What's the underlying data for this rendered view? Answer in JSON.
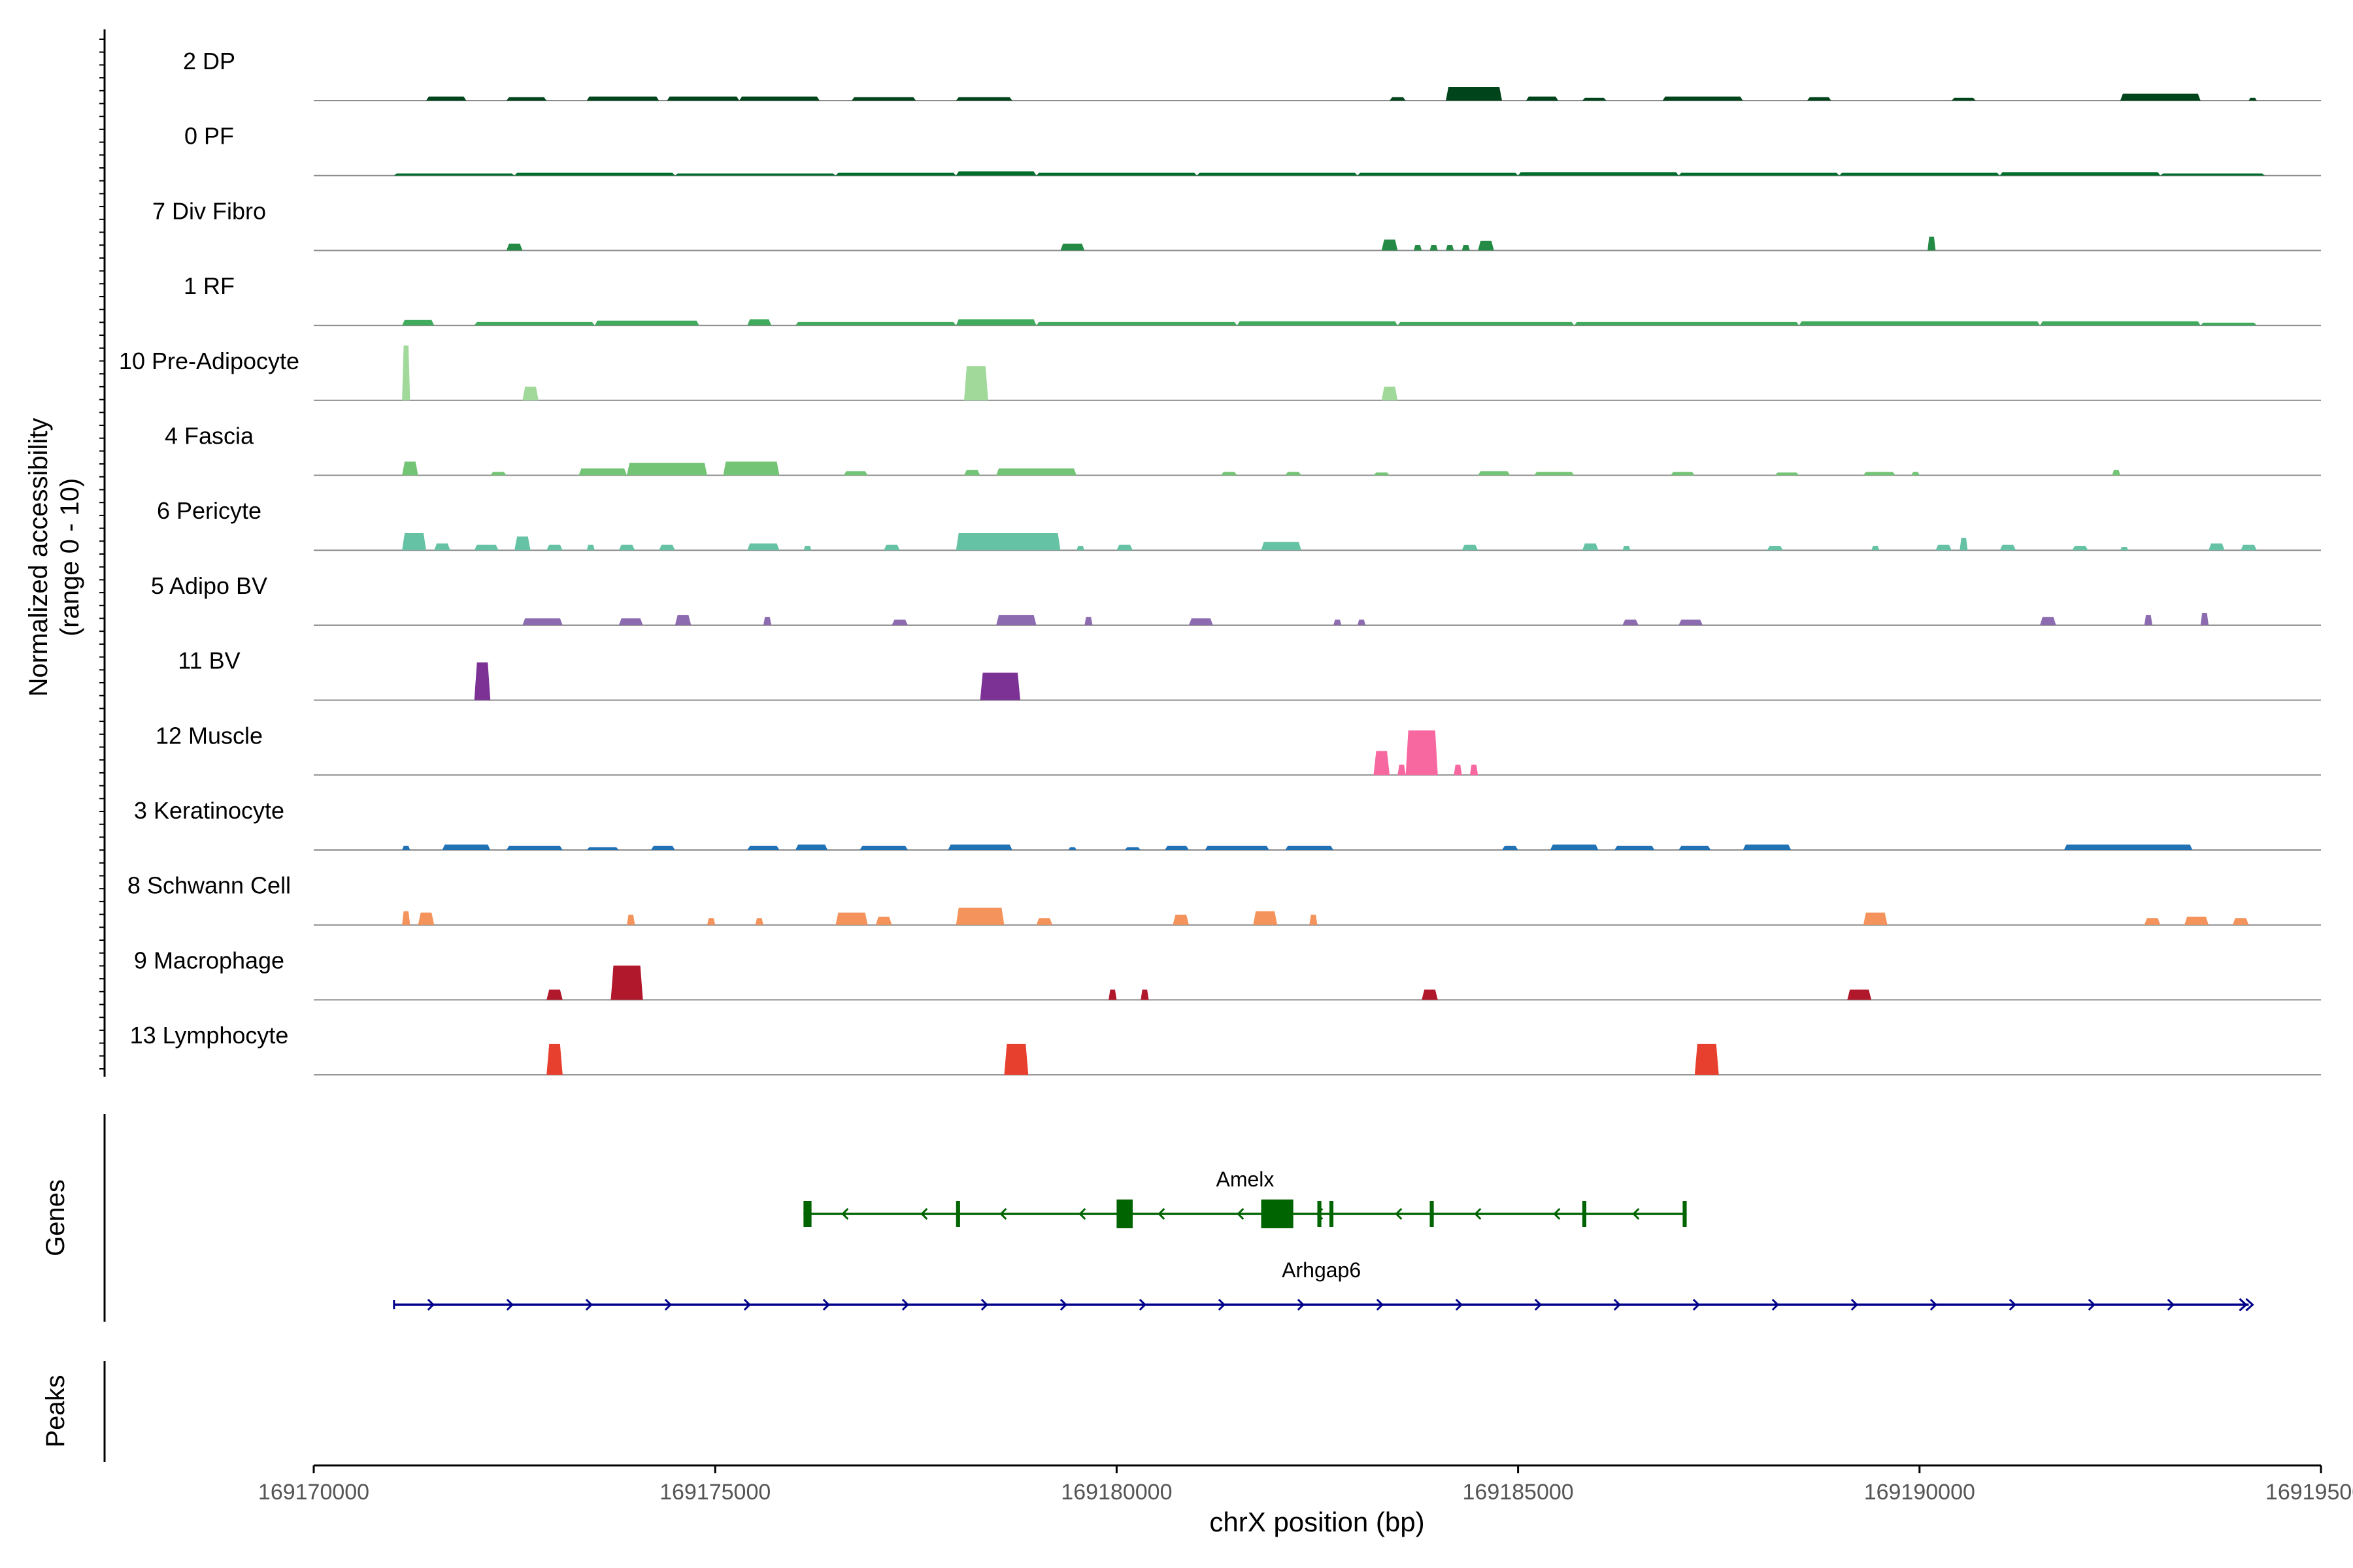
{
  "chart_data": {
    "type": "coverage",
    "chromosome": "chrX",
    "xlabel": "chrX position (bp)",
    "xlim": [
      169170000,
      169195000
    ],
    "xticks": [
      169170000,
      169175000,
      169180000,
      169185000,
      169190000,
      169195000
    ],
    "ylabel_line1": "Normalized accessibility",
    "ylabel_line2": "(range 0 - 10)",
    "ylim": [
      0,
      10
    ],
    "tracks": [
      {
        "name": "2 DP",
        "color": "#00441b",
        "peaks": [
          [
            169171400,
            169171900,
            0.6
          ],
          [
            169172400,
            169172900,
            0.5
          ],
          [
            169173400,
            169174300,
            0.6
          ],
          [
            169174400,
            169175300,
            0.6
          ],
          [
            169175300,
            169176300,
            0.6
          ],
          [
            169176700,
            169177500,
            0.5
          ],
          [
            169178000,
            169178700,
            0.5
          ],
          [
            169183400,
            169183600,
            0.5
          ],
          [
            169184100,
            169184800,
            2.0
          ],
          [
            169185100,
            169185500,
            0.6
          ],
          [
            169185800,
            169186100,
            0.4
          ],
          [
            169186800,
            169187800,
            0.6
          ],
          [
            169188600,
            169188900,
            0.5
          ],
          [
            169190400,
            169190700,
            0.4
          ],
          [
            169192500,
            169193500,
            1.0
          ],
          [
            169194100,
            169194200,
            0.4
          ]
        ]
      },
      {
        "name": "0 PF",
        "color": "#006d2c",
        "peaks": [
          [
            169171000,
            169172500,
            0.3
          ],
          [
            169172500,
            169174500,
            0.4
          ],
          [
            169174500,
            169176500,
            0.3
          ],
          [
            169176500,
            169178000,
            0.4
          ],
          [
            169178000,
            169179000,
            0.6
          ],
          [
            169179000,
            169181000,
            0.4
          ],
          [
            169181000,
            169183000,
            0.4
          ],
          [
            169183000,
            169185000,
            0.4
          ],
          [
            169185000,
            169187000,
            0.5
          ],
          [
            169187000,
            169189000,
            0.4
          ],
          [
            169189000,
            169191000,
            0.4
          ],
          [
            169191000,
            169193000,
            0.5
          ],
          [
            169193000,
            169194300,
            0.3
          ]
        ]
      },
      {
        "name": "7 Div Fibro",
        "color": "#238b45",
        "peaks": [
          [
            169172400,
            169172600,
            1.0
          ],
          [
            169179300,
            169179600,
            1.0
          ],
          [
            169183300,
            169183500,
            1.6
          ],
          [
            169183700,
            169183800,
            0.8
          ],
          [
            169183900,
            169184000,
            0.8
          ],
          [
            169184100,
            169184200,
            0.8
          ],
          [
            169184300,
            169184400,
            0.8
          ],
          [
            169184500,
            169184700,
            1.4
          ],
          [
            169190100,
            169190200,
            2.0
          ]
        ]
      },
      {
        "name": "1 RF",
        "color": "#41ab5d",
        "peaks": [
          [
            169171100,
            169171500,
            0.8
          ],
          [
            169172000,
            169173500,
            0.5
          ],
          [
            169173500,
            169174800,
            0.7
          ],
          [
            169175400,
            169175700,
            0.9
          ],
          [
            169176000,
            169178000,
            0.5
          ],
          [
            169178000,
            169179000,
            0.9
          ],
          [
            169179000,
            169181500,
            0.5
          ],
          [
            169181500,
            169183500,
            0.6
          ],
          [
            169183500,
            169185700,
            0.5
          ],
          [
            169185700,
            169188500,
            0.5
          ],
          [
            169188500,
            169191500,
            0.6
          ],
          [
            169191500,
            169193500,
            0.6
          ],
          [
            169193500,
            169194200,
            0.4
          ]
        ]
      },
      {
        "name": "10 Pre-Adipocyte",
        "color": "#a1d99b",
        "peaks": [
          [
            169171100,
            169171200,
            8.0
          ],
          [
            169172600,
            169172800,
            2.0
          ],
          [
            169178100,
            169178400,
            5.0
          ],
          [
            169183300,
            169183500,
            2.0
          ]
        ]
      },
      {
        "name": "4 Fascia",
        "color": "#74c476",
        "peaks": [
          [
            169171100,
            169171300,
            2.0
          ],
          [
            169172200,
            169172400,
            0.5
          ],
          [
            169173300,
            169173900,
            1.0
          ],
          [
            169173900,
            169174900,
            1.8
          ],
          [
            169175100,
            169175800,
            2.0
          ],
          [
            169176600,
            169176900,
            0.6
          ],
          [
            169178100,
            169178300,
            0.8
          ],
          [
            169178500,
            169179500,
            1.0
          ],
          [
            169181300,
            169181500,
            0.5
          ],
          [
            169182100,
            169182300,
            0.5
          ],
          [
            169183200,
            169183400,
            0.4
          ],
          [
            169184500,
            169184900,
            0.6
          ],
          [
            169185200,
            169185700,
            0.5
          ],
          [
            169186900,
            169187200,
            0.5
          ],
          [
            169188200,
            169188500,
            0.4
          ],
          [
            169189300,
            169189700,
            0.5
          ],
          [
            169189900,
            169190000,
            0.5
          ],
          [
            169192400,
            169192500,
            0.8
          ]
        ]
      },
      {
        "name": "6 Pericyte",
        "color": "#66c2a4",
        "peaks": [
          [
            169171100,
            169171400,
            2.5
          ],
          [
            169171500,
            169171700,
            1.0
          ],
          [
            169172000,
            169172300,
            0.8
          ],
          [
            169172500,
            169172700,
            2.0
          ],
          [
            169172900,
            169173100,
            0.8
          ],
          [
            169173400,
            169173500,
            0.8
          ],
          [
            169173800,
            169174000,
            0.8
          ],
          [
            169174300,
            169174500,
            0.8
          ],
          [
            169175400,
            169175800,
            1.0
          ],
          [
            169176100,
            169176200,
            0.6
          ],
          [
            169177100,
            169177300,
            0.8
          ],
          [
            169178000,
            169179300,
            2.5
          ],
          [
            169179500,
            169179600,
            0.6
          ],
          [
            169180000,
            169180200,
            0.8
          ],
          [
            169181800,
            169182300,
            1.2
          ],
          [
            169184300,
            169184500,
            0.8
          ],
          [
            169185800,
            169186000,
            1.0
          ],
          [
            169186300,
            169186400,
            0.6
          ],
          [
            169188100,
            169188300,
            0.6
          ],
          [
            169189400,
            169189500,
            0.6
          ],
          [
            169190200,
            169190400,
            0.8
          ],
          [
            169190500,
            169190600,
            1.8
          ],
          [
            169191000,
            169191200,
            0.8
          ],
          [
            169191900,
            169192100,
            0.6
          ],
          [
            169192500,
            169192600,
            0.5
          ],
          [
            169193600,
            169193800,
            1.0
          ],
          [
            169194000,
            169194200,
            0.8
          ]
        ]
      },
      {
        "name": "5 Adipo BV",
        "color": "#8c6bb1",
        "peaks": [
          [
            169172600,
            169173100,
            1.0
          ],
          [
            169173800,
            169174100,
            1.0
          ],
          [
            169174500,
            169174700,
            1.5
          ],
          [
            169175600,
            169175700,
            1.2
          ],
          [
            169177200,
            169177400,
            0.8
          ],
          [
            169178500,
            169179000,
            1.5
          ],
          [
            169179600,
            169179700,
            1.2
          ],
          [
            169180900,
            169181200,
            1.0
          ],
          [
            169182700,
            169182800,
            0.8
          ],
          [
            169183000,
            169183100,
            0.8
          ],
          [
            169186300,
            169186500,
            0.8
          ],
          [
            169187000,
            169187300,
            0.8
          ],
          [
            169191500,
            169191700,
            1.2
          ],
          [
            169192800,
            169192900,
            1.5
          ],
          [
            169193500,
            169193600,
            1.8
          ]
        ]
      },
      {
        "name": "11 BV",
        "color": "#7b3294",
        "peaks": [
          [
            169172000,
            169172200,
            5.5
          ],
          [
            169178300,
            169178800,
            4.0
          ]
        ]
      },
      {
        "name": "12 Muscle",
        "color": "#f768a1",
        "peaks": [
          [
            169183200,
            169183400,
            3.5
          ],
          [
            169183500,
            169183600,
            1.5
          ],
          [
            169183600,
            169184000,
            6.5
          ],
          [
            169184200,
            169184300,
            1.5
          ],
          [
            169184400,
            169184500,
            1.5
          ]
        ]
      },
      {
        "name": "3 Keratinocyte",
        "color": "#2171b5",
        "peaks": [
          [
            169171100,
            169171200,
            0.6
          ],
          [
            169171600,
            169172200,
            0.8
          ],
          [
            169172400,
            169173100,
            0.6
          ],
          [
            169173400,
            169173800,
            0.4
          ],
          [
            169174200,
            169174500,
            0.6
          ],
          [
            169175400,
            169175800,
            0.6
          ],
          [
            169176000,
            169176400,
            0.8
          ],
          [
            169176800,
            169177400,
            0.6
          ],
          [
            169177900,
            169178700,
            0.8
          ],
          [
            169179400,
            169179500,
            0.4
          ],
          [
            169180100,
            169180300,
            0.4
          ],
          [
            169180600,
            169180900,
            0.6
          ],
          [
            169181100,
            169181900,
            0.6
          ],
          [
            169182100,
            169182700,
            0.6
          ],
          [
            169184800,
            169185000,
            0.6
          ],
          [
            169185400,
            169186000,
            0.8
          ],
          [
            169186200,
            169186700,
            0.6
          ],
          [
            169187000,
            169187400,
            0.6
          ],
          [
            169187800,
            169188400,
            0.8
          ],
          [
            169191800,
            169193400,
            0.8
          ]
        ]
      },
      {
        "name": "8 Schwann Cell",
        "color": "#f4935b",
        "peaks": [
          [
            169171100,
            169171200,
            2.0
          ],
          [
            169171300,
            169171500,
            1.8
          ],
          [
            169173900,
            169174000,
            1.5
          ],
          [
            169174900,
            169175000,
            1.0
          ],
          [
            169175500,
            169175600,
            1.0
          ],
          [
            169176500,
            169176900,
            1.8
          ],
          [
            169177000,
            169177200,
            1.2
          ],
          [
            169178000,
            169178600,
            2.5
          ],
          [
            169179000,
            169179200,
            1.0
          ],
          [
            169180700,
            169180900,
            1.5
          ],
          [
            169181700,
            169182000,
            2.0
          ],
          [
            169182400,
            169182500,
            1.5
          ],
          [
            169189300,
            169189600,
            1.8
          ],
          [
            169192800,
            169193000,
            1.0
          ],
          [
            169193300,
            169193600,
            1.2
          ],
          [
            169193900,
            169194100,
            1.0
          ]
        ]
      },
      {
        "name": "9 Macrophage",
        "color": "#b2182b",
        "peaks": [
          [
            169172900,
            169173100,
            1.5
          ],
          [
            169173700,
            169174100,
            5.0
          ],
          [
            169179900,
            169180000,
            1.5
          ],
          [
            169180300,
            169180400,
            1.5
          ],
          [
            169183800,
            169184000,
            1.5
          ],
          [
            169189100,
            169189400,
            1.5
          ]
        ]
      },
      {
        "name": "13 Lymphocyte",
        "color": "#e8402f",
        "peaks": [
          [
            169172900,
            169173100,
            4.5
          ],
          [
            169178600,
            169178900,
            4.5
          ],
          [
            169187200,
            169187500,
            4.5
          ]
        ]
      }
    ]
  },
  "genes": {
    "label": "Genes",
    "items": [
      {
        "name": "Amelx",
        "color": "#006400",
        "start": 169176100,
        "end": 169187100,
        "strand": "-",
        "exons": [
          [
            169176100,
            169176200
          ],
          [
            169178000,
            169178050
          ],
          [
            169180000,
            169180200
          ],
          [
            169181800,
            169182200
          ],
          [
            169182500,
            169182550
          ],
          [
            169182650,
            169182700
          ],
          [
            169183900,
            169183950
          ],
          [
            169185800,
            169185850
          ],
          [
            169187050,
            169187100
          ]
        ]
      },
      {
        "name": "Arhgap6",
        "color": "#00008b",
        "start": 169171000,
        "end": 169194100,
        "strand": "+",
        "exons": []
      }
    ]
  },
  "peaks": {
    "label": "Peaks"
  }
}
